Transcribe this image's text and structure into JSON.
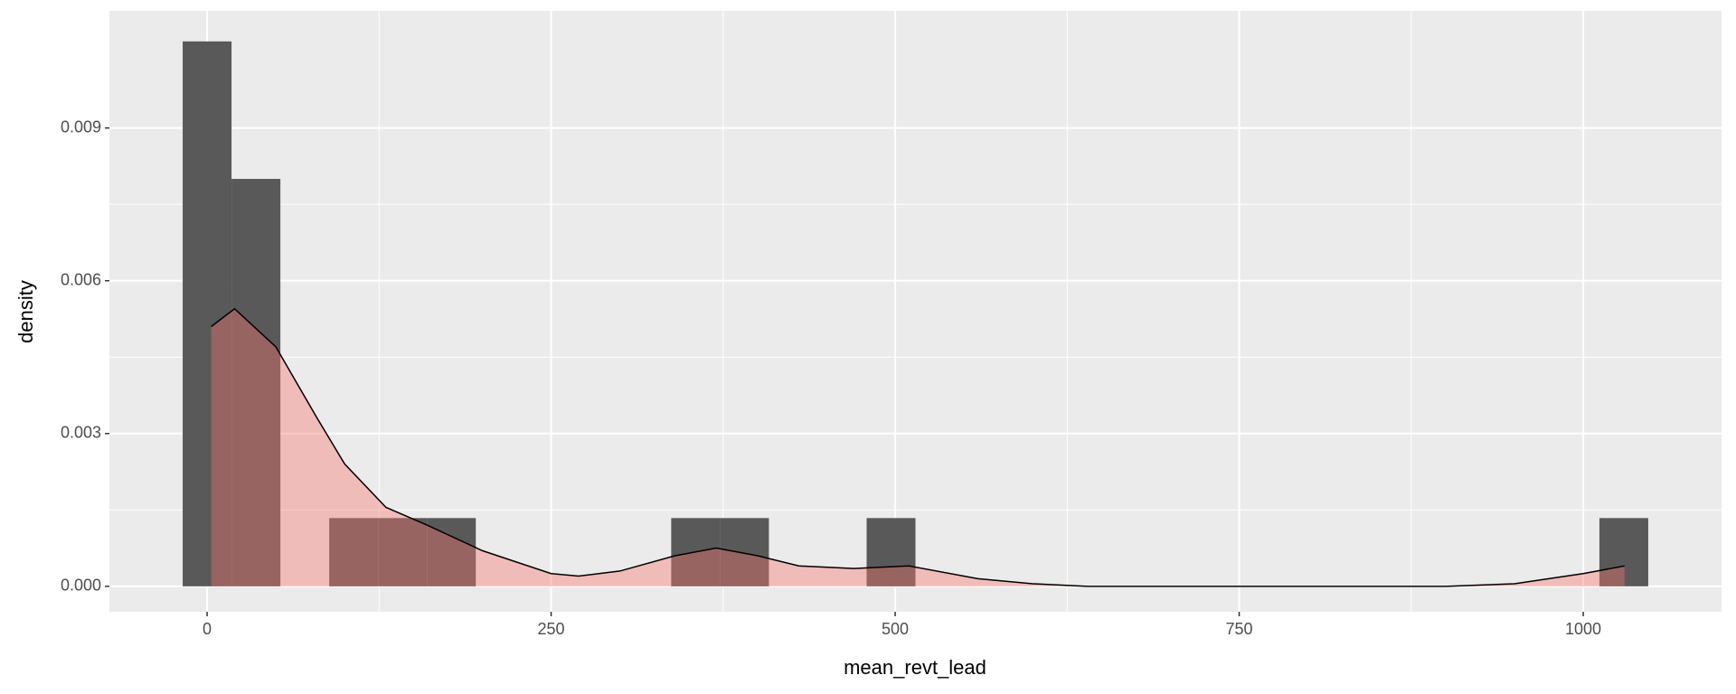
{
  "chart_data": {
    "type": "histogram",
    "x_label": "mean_revt_lead",
    "y_label": "density",
    "bins": [
      -17.75,
      17.75,
      53.25,
      88.75,
      124.25,
      159.75,
      195.25,
      230.75,
      266.25,
      301.75,
      337.25,
      372.75,
      408.25,
      443.75,
      479.25,
      514.75,
      550.25,
      585.75,
      621.25,
      656.75,
      692.25,
      727.75,
      763.25,
      798.75,
      834.25,
      869.75,
      905.25,
      940.75,
      976.25,
      1011.75,
      1047.25
    ],
    "values": [
      0.0107,
      0.008,
      0,
      0.00134,
      0.00134,
      0.00134,
      0,
      0,
      0,
      0,
      0.00134,
      0.00134,
      0,
      0,
      0.00134,
      0,
      0,
      0,
      0,
      0,
      0,
      0,
      0,
      0,
      0,
      0,
      0,
      0,
      0,
      0.00134
    ],
    "color": "#595959",
    "density": {
      "x": [
        3,
        20,
        50,
        80,
        100,
        130,
        160,
        200,
        250,
        270,
        300,
        340,
        370,
        400,
        430,
        470,
        510,
        560,
        600,
        640,
        800,
        900,
        950,
        1000,
        1030
      ],
      "values": [
        0.0051,
        0.00545,
        0.0047,
        0.0033,
        0.0024,
        0.00155,
        0.0012,
        0.0007,
        0.00025,
        0.0002,
        0.0003,
        0.0006,
        0.00075,
        0.0006,
        0.0004,
        0.00035,
        0.0004,
        0.00015,
        5e-05,
        0,
        0,
        0,
        5e-05,
        0.00025,
        0.0004
      ],
      "fill": "#f8766d",
      "fill_opacity": 0.4,
      "line_color": "#000000"
    },
    "xlim": [
      -71,
      1100.5
    ],
    "xticks": [
      0,
      250,
      500,
      750,
      1000
    ],
    "ylim": [
      -0.0005,
      0.0113
    ],
    "yticks": [
      {
        "value": 0,
        "label": "0.000"
      },
      {
        "value": 0.003,
        "label": "0.003"
      },
      {
        "value": 0.006,
        "label": "0.006"
      },
      {
        "value": 0.009,
        "label": "0.009"
      }
    ],
    "grid": true,
    "panel_color": "#ebebeb"
  }
}
